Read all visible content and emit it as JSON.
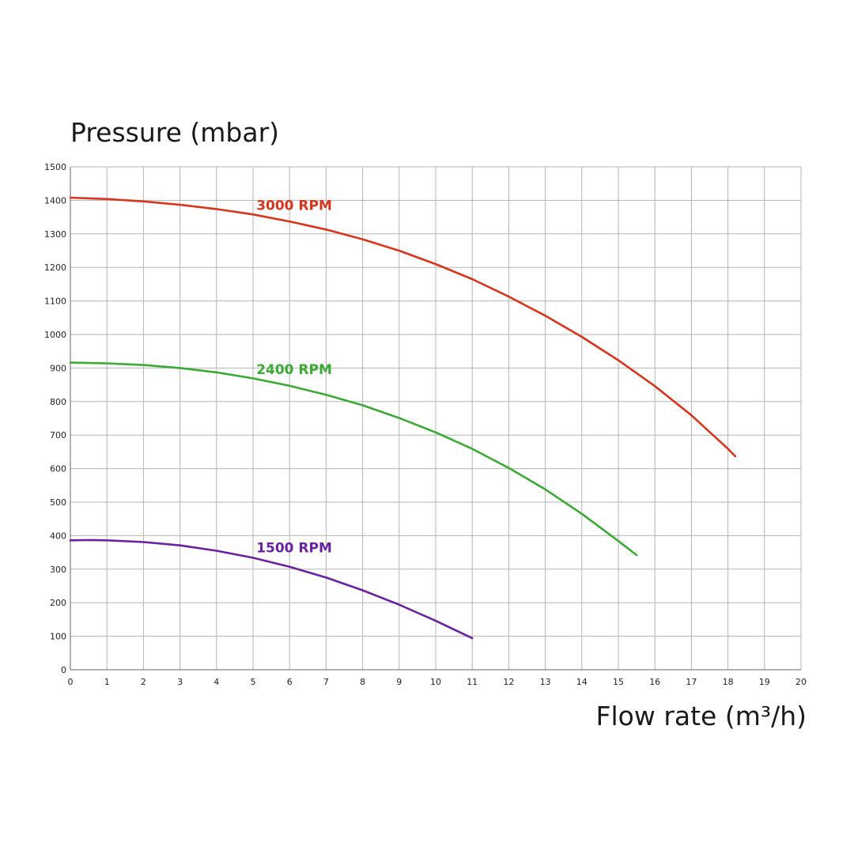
{
  "chart_data": {
    "type": "line",
    "title": "",
    "ylabel": "Pressure (mbar)",
    "xlabel": "Flow rate (m³/h)",
    "xlim": [
      0,
      20
    ],
    "ylim": [
      0,
      1500
    ],
    "x_ticks": [
      0,
      1,
      2,
      3,
      4,
      5,
      6,
      7,
      8,
      9,
      10,
      11,
      12,
      13,
      14,
      15,
      16,
      17,
      18,
      19,
      20
    ],
    "y_ticks": [
      0,
      100,
      200,
      300,
      400,
      500,
      600,
      700,
      800,
      900,
      1000,
      1100,
      1200,
      1300,
      1400,
      1500
    ],
    "grid": true,
    "legend": "inline labels",
    "series": [
      {
        "name": "3000 RPM",
        "color": "#d9341c",
        "points": [
          [
            0,
            1408
          ],
          [
            1,
            1404
          ],
          [
            2,
            1397
          ],
          [
            3,
            1387
          ],
          [
            4,
            1374
          ],
          [
            5,
            1358
          ],
          [
            6,
            1337
          ],
          [
            7,
            1313
          ],
          [
            8,
            1284
          ],
          [
            9,
            1250
          ],
          [
            10,
            1210
          ],
          [
            11,
            1165
          ],
          [
            12,
            1113
          ],
          [
            13,
            1056
          ],
          [
            14,
            993
          ],
          [
            15,
            923
          ],
          [
            16,
            846
          ],
          [
            17,
            759
          ],
          [
            18,
            659
          ],
          [
            18.2,
            637
          ]
        ]
      },
      {
        "name": "2400 RPM",
        "color": "#3aaa35",
        "points": [
          [
            0,
            916
          ],
          [
            1,
            914
          ],
          [
            2,
            909
          ],
          [
            3,
            900
          ],
          [
            4,
            887
          ],
          [
            5,
            869
          ],
          [
            6,
            847
          ],
          [
            7,
            820
          ],
          [
            8,
            789
          ],
          [
            9,
            751
          ],
          [
            10,
            708
          ],
          [
            11,
            659
          ],
          [
            12,
            602
          ],
          [
            13,
            538
          ],
          [
            14,
            465
          ],
          [
            15,
            384
          ],
          [
            15.5,
            342
          ]
        ]
      },
      {
        "name": "1500 RPM",
        "color": "#6a22a0",
        "points": [
          [
            0,
            386
          ],
          [
            0.5,
            387
          ],
          [
            1,
            386
          ],
          [
            2,
            381
          ],
          [
            3,
            371
          ],
          [
            4,
            355
          ],
          [
            5,
            334
          ],
          [
            6,
            307
          ],
          [
            7,
            275
          ],
          [
            8,
            237
          ],
          [
            9,
            194
          ],
          [
            10,
            146
          ],
          [
            11,
            94
          ]
        ]
      }
    ],
    "annotations": [
      {
        "series": "3000 RPM",
        "x": 6,
        "y": 1357
      },
      {
        "series": "2400 RPM",
        "x": 6,
        "y": 868
      },
      {
        "series": "1500 RPM",
        "x": 6,
        "y": 336
      }
    ]
  }
}
